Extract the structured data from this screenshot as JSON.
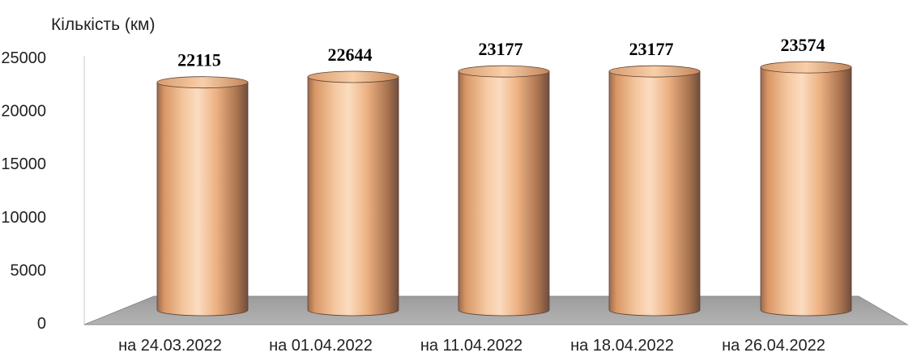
{
  "chart_data": {
    "type": "bar",
    "style": "3d-cylinder",
    "ylabel": "Кількість (км)",
    "categories": [
      "на 24.03.2022",
      "на 01.04.2022",
      "на 11.04.2022",
      "на 18.04.2022",
      "на 26.04.2022"
    ],
    "values": [
      22115,
      22644,
      23177,
      23177,
      23574
    ],
    "data_labels": [
      "22115",
      "22644",
      "23177",
      "23177",
      "23574"
    ],
    "yticks": [
      "0",
      "5000",
      "10000",
      "15000",
      "20000",
      "25000"
    ],
    "ylim": [
      0,
      25000
    ],
    "grid": false,
    "legend": "none",
    "colors": {
      "bar_light": "#FBDCC0",
      "bar_mid": "#E9A778",
      "bar_dark": "#6E4E3E",
      "floor": "#A6A6A6"
    }
  }
}
